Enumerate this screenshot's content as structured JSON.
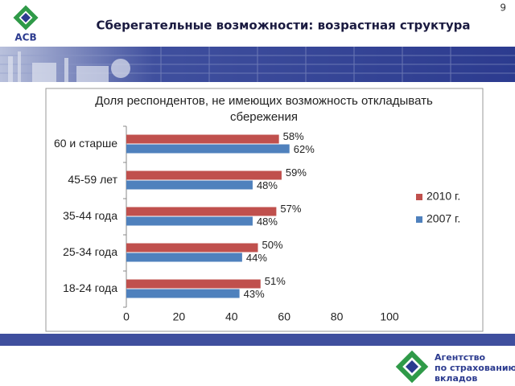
{
  "header": {
    "logo": "АСВ",
    "title": "Сберегательные возможности: возрастная структура",
    "page_number": "9"
  },
  "footer": {
    "logo_lines": [
      "Агентство",
      "по страхованию",
      "вкладов"
    ]
  },
  "chart_data": {
    "type": "hbar",
    "title": [
      "Доля респондентов, не имеющих возможность откладывать",
      "сбережения"
    ],
    "categories": [
      "60 и старше",
      "45-59 лет",
      "35-44 года",
      "25-34 года",
      "18-24 года"
    ],
    "series": [
      {
        "name": "2010 г.",
        "color": "#c0504d",
        "values": [
          58,
          59,
          57,
          50,
          51
        ],
        "value_labels": [
          "58%",
          "59%",
          "57%",
          "50%",
          "51%"
        ]
      },
      {
        "name": "2007 г.",
        "color": "#4f81bd",
        "values": [
          62,
          48,
          48,
          44,
          43
        ],
        "value_labels": [
          "62%",
          "48%",
          "48%",
          "44%",
          "43%"
        ]
      }
    ],
    "xlim": [
      0,
      100
    ],
    "xticks": [
      0,
      20,
      40,
      60,
      80,
      100
    ],
    "legend": "right"
  }
}
